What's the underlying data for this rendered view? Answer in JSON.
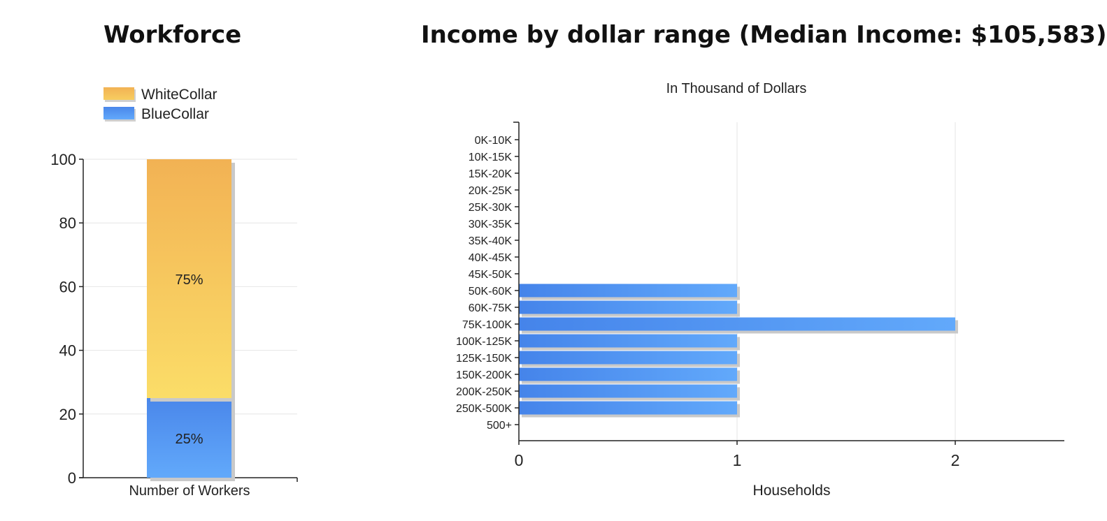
{
  "chart_data": [
    {
      "type": "bar",
      "stacked": true,
      "title": "Workforce",
      "categories": [
        "Number of Workers"
      ],
      "series": [
        {
          "name": "WhiteCollar",
          "values": [
            75
          ],
          "label": "75%",
          "color": "#f5c45e"
        },
        {
          "name": "BlueCollar",
          "values": [
            25
          ],
          "label": "25%",
          "color": "#4f8ff0"
        }
      ],
      "ylim": [
        0,
        100
      ],
      "yticks": [
        "0",
        "20",
        "40",
        "60",
        "80",
        "100"
      ],
      "grid": true,
      "legend": "top-left"
    },
    {
      "type": "bar",
      "orientation": "horizontal",
      "title": "Income by dollar range (Median Income: $105,583)",
      "subtitle": "In Thousand of Dollars",
      "xlabel": "Households",
      "categories": [
        "0K-10K",
        "10K-15K",
        "15K-20K",
        "20K-25K",
        "25K-30K",
        "30K-35K",
        "35K-40K",
        "40K-45K",
        "45K-50K",
        "50K-60K",
        "60K-75K",
        "75K-100K",
        "100K-125K",
        "125K-150K",
        "150K-200K",
        "200K-250K",
        "250K-500K",
        "500+"
      ],
      "values": [
        0,
        0,
        0,
        0,
        0,
        0,
        0,
        0,
        0,
        1,
        1,
        2,
        1,
        1,
        1,
        1,
        1,
        0
      ],
      "xlim": [
        0,
        2.5
      ],
      "xticks": [
        "0",
        "1",
        "2"
      ],
      "color": "#4f8ff0",
      "grid": true
    }
  ]
}
